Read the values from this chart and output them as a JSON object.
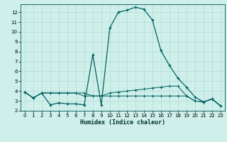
{
  "xlabel": "Humidex (Indice chaleur)",
  "background_color": "#cff0ea",
  "grid_color": "#b8ddd8",
  "line_color": "#006060",
  "xlim": [
    -0.5,
    23.5
  ],
  "ylim": [
    2,
    12.8
  ],
  "xticks": [
    0,
    1,
    2,
    3,
    4,
    5,
    6,
    7,
    8,
    9,
    10,
    11,
    12,
    13,
    14,
    15,
    16,
    17,
    18,
    19,
    20,
    21,
    22,
    23
  ],
  "yticks": [
    2,
    3,
    4,
    5,
    6,
    7,
    8,
    9,
    10,
    11,
    12
  ],
  "line1_x": [
    0,
    1,
    2,
    3,
    4,
    5,
    6,
    7,
    8,
    9,
    10,
    11,
    12,
    13,
    14,
    15,
    16,
    17,
    18,
    19,
    20,
    21,
    22,
    23
  ],
  "line1_y": [
    3.9,
    3.3,
    3.8,
    2.6,
    2.8,
    2.7,
    2.7,
    2.6,
    7.7,
    2.6,
    10.4,
    12.0,
    12.2,
    12.5,
    12.3,
    11.2,
    8.1,
    6.6,
    5.3,
    4.4,
    3.4,
    2.9,
    3.2,
    2.5
  ],
  "line2_x": [
    0,
    1,
    2,
    3,
    4,
    5,
    6,
    7,
    8,
    9,
    10,
    11,
    12,
    13,
    14,
    15,
    16,
    17,
    18,
    19,
    20,
    21,
    22,
    23
  ],
  "line2_y": [
    3.9,
    3.3,
    3.8,
    3.8,
    3.8,
    3.8,
    3.8,
    3.5,
    3.5,
    3.5,
    3.8,
    3.9,
    4.0,
    4.1,
    4.2,
    4.3,
    4.4,
    4.5,
    4.5,
    3.5,
    3.0,
    2.9,
    3.2,
    2.5
  ],
  "line3_x": [
    0,
    1,
    2,
    3,
    4,
    5,
    6,
    7,
    8,
    9,
    10,
    11,
    12,
    13,
    14,
    15,
    16,
    17,
    18,
    19,
    20,
    21,
    22,
    23
  ],
  "line3_y": [
    3.9,
    3.3,
    3.8,
    3.8,
    3.8,
    3.8,
    3.8,
    3.8,
    3.5,
    3.5,
    3.5,
    3.5,
    3.5,
    3.5,
    3.5,
    3.5,
    3.5,
    3.5,
    3.5,
    3.5,
    3.0,
    2.9,
    3.2,
    2.5
  ]
}
